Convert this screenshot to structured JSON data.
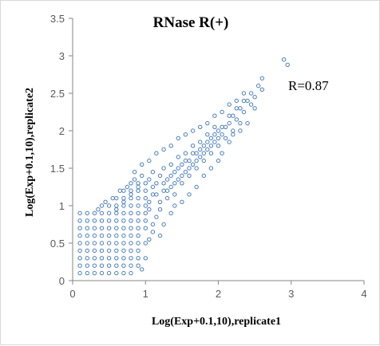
{
  "chart_data": {
    "type": "scatter",
    "title": "RNase R(+)",
    "xlabel": "Log(Exp+0.1,10),replicate1",
    "ylabel": "Log(Exp+0.1,10),replicate2",
    "xlim": [
      0,
      4
    ],
    "ylim": [
      0,
      3.5
    ],
    "x_ticks": [
      "0",
      "1",
      "2",
      "3",
      "4"
    ],
    "y_ticks": [
      "0",
      "0.5",
      "1",
      "1.5",
      "2",
      "2.5",
      "3",
      "3.5"
    ],
    "grid": false,
    "annotation": "R=0.87",
    "marker_color": "#4a7ebb",
    "points": [
      [
        0.1,
        0.1
      ],
      [
        0.1,
        0.2
      ],
      [
        0.1,
        0.3
      ],
      [
        0.1,
        0.4
      ],
      [
        0.1,
        0.5
      ],
      [
        0.1,
        0.6
      ],
      [
        0.1,
        0.7
      ],
      [
        0.1,
        0.8
      ],
      [
        0.1,
        0.9
      ],
      [
        0.2,
        0.1
      ],
      [
        0.2,
        0.2
      ],
      [
        0.2,
        0.3
      ],
      [
        0.2,
        0.4
      ],
      [
        0.2,
        0.5
      ],
      [
        0.2,
        0.6
      ],
      [
        0.2,
        0.7
      ],
      [
        0.2,
        0.8
      ],
      [
        0.2,
        0.9
      ],
      [
        0.3,
        0.1
      ],
      [
        0.3,
        0.2
      ],
      [
        0.3,
        0.3
      ],
      [
        0.3,
        0.4
      ],
      [
        0.3,
        0.5
      ],
      [
        0.3,
        0.6
      ],
      [
        0.3,
        0.7
      ],
      [
        0.3,
        0.8
      ],
      [
        0.3,
        0.9
      ],
      [
        0.4,
        0.1
      ],
      [
        0.4,
        0.2
      ],
      [
        0.4,
        0.3
      ],
      [
        0.4,
        0.4
      ],
      [
        0.4,
        0.5
      ],
      [
        0.4,
        0.6
      ],
      [
        0.4,
        0.7
      ],
      [
        0.4,
        0.8
      ],
      [
        0.4,
        0.9
      ],
      [
        0.4,
        1.0
      ],
      [
        0.5,
        0.1
      ],
      [
        0.5,
        0.2
      ],
      [
        0.5,
        0.3
      ],
      [
        0.5,
        0.4
      ],
      [
        0.5,
        0.5
      ],
      [
        0.5,
        0.6
      ],
      [
        0.5,
        0.7
      ],
      [
        0.5,
        0.8
      ],
      [
        0.5,
        0.9
      ],
      [
        0.5,
        1.0
      ],
      [
        0.6,
        0.1
      ],
      [
        0.6,
        0.2
      ],
      [
        0.6,
        0.3
      ],
      [
        0.6,
        0.4
      ],
      [
        0.6,
        0.5
      ],
      [
        0.6,
        0.6
      ],
      [
        0.6,
        0.7
      ],
      [
        0.6,
        0.8
      ],
      [
        0.6,
        0.9
      ],
      [
        0.6,
        1.0
      ],
      [
        0.6,
        1.1
      ],
      [
        0.7,
        0.1
      ],
      [
        0.7,
        0.2
      ],
      [
        0.7,
        0.3
      ],
      [
        0.7,
        0.4
      ],
      [
        0.7,
        0.5
      ],
      [
        0.7,
        0.6
      ],
      [
        0.7,
        0.7
      ],
      [
        0.7,
        0.8
      ],
      [
        0.7,
        0.9
      ],
      [
        0.7,
        1.0
      ],
      [
        0.7,
        1.1
      ],
      [
        0.7,
        1.2
      ],
      [
        0.8,
        0.1
      ],
      [
        0.8,
        0.2
      ],
      [
        0.8,
        0.3
      ],
      [
        0.8,
        0.4
      ],
      [
        0.8,
        0.5
      ],
      [
        0.8,
        0.6
      ],
      [
        0.8,
        0.7
      ],
      [
        0.8,
        0.8
      ],
      [
        0.8,
        0.9
      ],
      [
        0.8,
        1.0
      ],
      [
        0.8,
        1.1
      ],
      [
        0.8,
        1.2
      ],
      [
        0.8,
        1.3
      ],
      [
        0.9,
        0.2
      ],
      [
        0.9,
        0.3
      ],
      [
        0.9,
        0.4
      ],
      [
        0.9,
        0.5
      ],
      [
        0.9,
        0.6
      ],
      [
        0.9,
        0.7
      ],
      [
        0.9,
        0.8
      ],
      [
        0.9,
        0.9
      ],
      [
        0.9,
        1.0
      ],
      [
        0.9,
        1.1
      ],
      [
        0.9,
        1.2
      ],
      [
        0.9,
        1.3
      ],
      [
        1.0,
        0.3
      ],
      [
        1.0,
        0.5
      ],
      [
        1.0,
        0.7
      ],
      [
        1.0,
        0.9
      ],
      [
        1.0,
        1.1
      ],
      [
        1.0,
        1.3
      ],
      [
        0.35,
        0.95
      ],
      [
        0.45,
        1.05
      ],
      [
        0.55,
        1.1
      ],
      [
        0.65,
        1.2
      ],
      [
        0.75,
        1.25
      ],
      [
        0.85,
        1.35
      ],
      [
        0.95,
        1.4
      ],
      [
        0.6,
        0.95
      ],
      [
        0.7,
        1.05
      ],
      [
        0.8,
        1.15
      ],
      [
        0.9,
        1.25
      ],
      [
        1.0,
        1.2
      ],
      [
        1.0,
        1.0
      ],
      [
        1.0,
        0.8
      ],
      [
        1.05,
        0.55
      ],
      [
        1.1,
        0.65
      ],
      [
        1.1,
        0.75
      ],
      [
        1.05,
        0.95
      ],
      [
        1.1,
        1.15
      ],
      [
        1.15,
        0.85
      ],
      [
        1.2,
        0.95
      ],
      [
        1.05,
        1.35
      ],
      [
        1.1,
        1.45
      ],
      [
        1.15,
        1.3
      ],
      [
        1.2,
        1.4
      ],
      [
        1.25,
        1.2
      ],
      [
        1.25,
        1.5
      ],
      [
        1.3,
        1.1
      ],
      [
        1.3,
        1.35
      ],
      [
        1.35,
        1.25
      ],
      [
        1.35,
        1.55
      ],
      [
        1.4,
        1.15
      ],
      [
        1.4,
        1.45
      ],
      [
        1.45,
        1.35
      ],
      [
        1.45,
        1.65
      ],
      [
        1.5,
        1.3
      ],
      [
        1.5,
        1.55
      ],
      [
        1.55,
        1.45
      ],
      [
        1.55,
        1.7
      ],
      [
        1.6,
        1.4
      ],
      [
        1.6,
        1.6
      ],
      [
        1.65,
        1.55
      ],
      [
        1.65,
        1.8
      ],
      [
        1.7,
        1.5
      ],
      [
        1.7,
        1.7
      ],
      [
        1.75,
        1.65
      ],
      [
        1.75,
        1.85
      ],
      [
        1.8,
        1.6
      ],
      [
        1.8,
        1.8
      ],
      [
        1.85,
        1.75
      ],
      [
        1.85,
        1.95
      ],
      [
        1.9,
        1.7
      ],
      [
        1.9,
        1.9
      ],
      [
        1.95,
        1.85
      ],
      [
        1.95,
        2.05
      ],
      [
        2.0,
        1.8
      ],
      [
        2.0,
        2.0
      ],
      [
        2.05,
        1.95
      ],
      [
        2.1,
        2.05
      ],
      [
        2.1,
        1.9
      ],
      [
        2.15,
        2.1
      ],
      [
        2.2,
        2.0
      ],
      [
        2.2,
        2.2
      ],
      [
        2.25,
        2.15
      ],
      [
        2.3,
        2.1
      ],
      [
        2.3,
        2.3
      ],
      [
        2.35,
        2.25
      ],
      [
        2.4,
        2.4
      ],
      [
        2.45,
        2.35
      ],
      [
        2.5,
        2.45
      ],
      [
        2.55,
        2.6
      ],
      [
        2.6,
        2.55
      ],
      [
        2.6,
        2.7
      ],
      [
        2.9,
        2.95
      ],
      [
        2.95,
        2.88
      ],
      [
        0.95,
        0.15
      ],
      [
        1.2,
        0.6
      ],
      [
        1.25,
        0.75
      ],
      [
        1.35,
        0.9
      ],
      [
        1.4,
        1.0
      ],
      [
        1.5,
        1.05
      ],
      [
        1.6,
        1.15
      ],
      [
        1.7,
        1.25
      ],
      [
        1.8,
        1.4
      ],
      [
        1.9,
        1.5
      ],
      [
        2.0,
        1.6
      ],
      [
        2.05,
        1.7
      ],
      [
        2.15,
        1.85
      ],
      [
        2.2,
        1.95
      ],
      [
        2.3,
        2.0
      ],
      [
        2.4,
        2.1
      ],
      [
        2.5,
        2.3
      ],
      [
        0.85,
        1.45
      ],
      [
        0.95,
        1.55
      ],
      [
        1.05,
        1.6
      ],
      [
        1.15,
        1.7
      ],
      [
        1.25,
        1.75
      ],
      [
        1.35,
        1.8
      ],
      [
        1.45,
        1.9
      ],
      [
        1.55,
        1.95
      ],
      [
        1.65,
        2.0
      ],
      [
        1.75,
        2.05
      ],
      [
        1.85,
        2.1
      ],
      [
        1.95,
        2.2
      ],
      [
        2.05,
        2.25
      ],
      [
        2.15,
        2.35
      ],
      [
        2.25,
        2.4
      ],
      [
        2.35,
        2.5
      ],
      [
        1.2,
        1.05
      ],
      [
        1.3,
        1.2
      ],
      [
        1.4,
        1.3
      ],
      [
        1.5,
        1.4
      ],
      [
        1.6,
        1.5
      ],
      [
        1.7,
        1.6
      ],
      [
        1.8,
        1.7
      ],
      [
        1.9,
        1.8
      ],
      [
        2.0,
        1.9
      ],
      [
        1.15,
        1.15
      ],
      [
        1.25,
        1.3
      ],
      [
        1.35,
        1.4
      ],
      [
        1.45,
        1.5
      ],
      [
        1.55,
        1.6
      ],
      [
        1.65,
        1.7
      ],
      [
        1.75,
        1.75
      ],
      [
        1.85,
        1.85
      ],
      [
        1.95,
        1.95
      ],
      [
        2.05,
        2.05
      ],
      [
        2.15,
        2.2
      ],
      [
        2.25,
        2.3
      ],
      [
        2.35,
        2.4
      ],
      [
        2.45,
        2.5
      ],
      [
        1.05,
        1.05
      ],
      [
        1.1,
        1.25
      ]
    ]
  }
}
